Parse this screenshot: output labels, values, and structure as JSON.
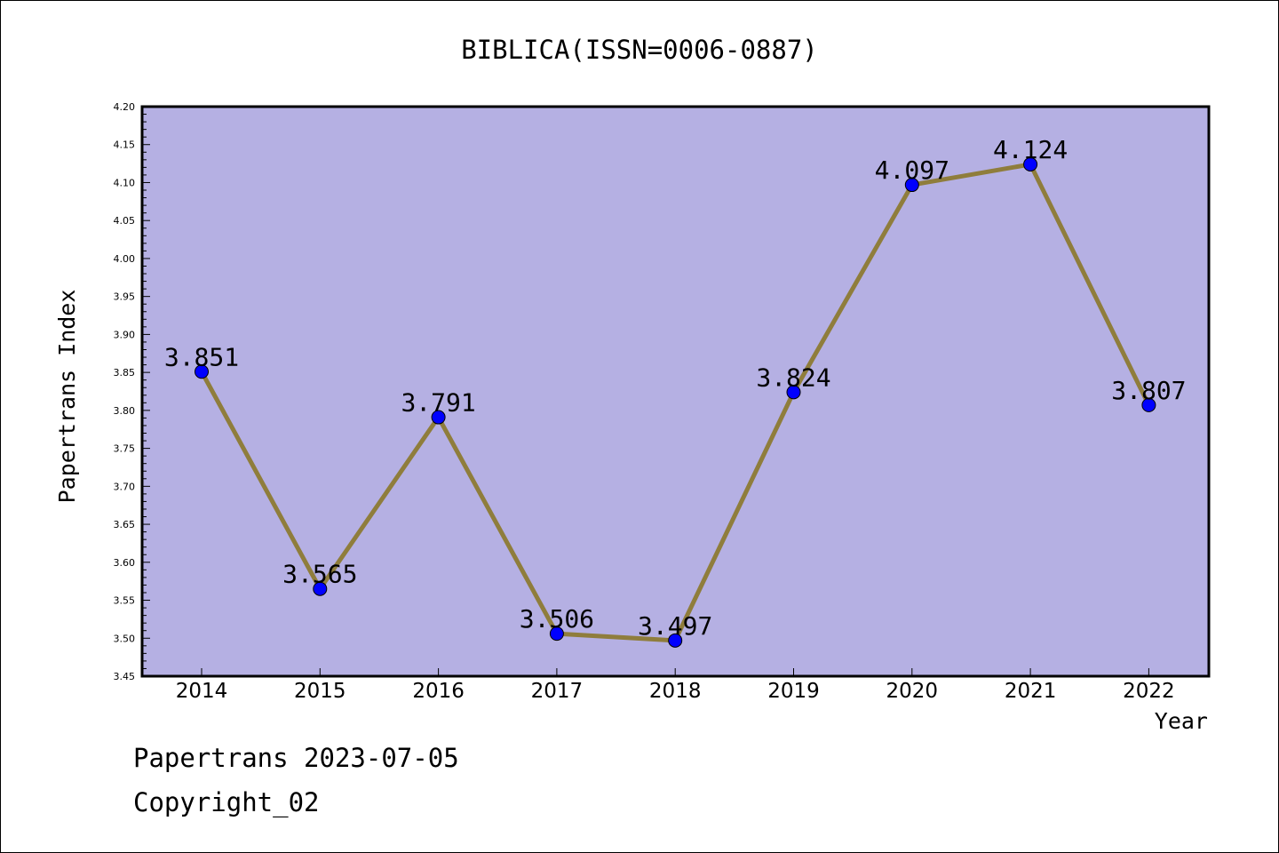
{
  "chart_data": {
    "type": "line",
    "title": "BIBLICA(ISSN=0006-0887)",
    "xlabel": "Year",
    "ylabel": "Papertrans Index",
    "categories": [
      "2014",
      "2015",
      "2016",
      "2017",
      "2018",
      "2019",
      "2020",
      "2021",
      "2022"
    ],
    "series": [
      {
        "values": [
          3.851,
          3.565,
          3.791,
          3.506,
          3.497,
          3.824,
          4.097,
          4.124,
          3.807
        ],
        "labels": [
          "3.851",
          "3.565",
          "3.791",
          "3.506",
          "3.497",
          "3.824",
          "4.097",
          "4.124",
          "3.807"
        ]
      }
    ],
    "ylim": [
      3.45,
      4.2
    ],
    "yticks": [
      "3.45",
      "3.50",
      "3.55",
      "3.60",
      "3.65",
      "3.70",
      "3.75",
      "3.80",
      "3.85",
      "3.90",
      "3.95",
      "4.00",
      "4.05",
      "4.10",
      "4.15",
      "4.20"
    ],
    "grid": false,
    "legend": "none",
    "colors": {
      "plot_background": "#b5b0e3",
      "line": "#8f7d3c",
      "marker": "#0000ff"
    }
  },
  "footer": {
    "line1": "Papertrans 2023-07-05",
    "line2": "Copyright_02"
  }
}
